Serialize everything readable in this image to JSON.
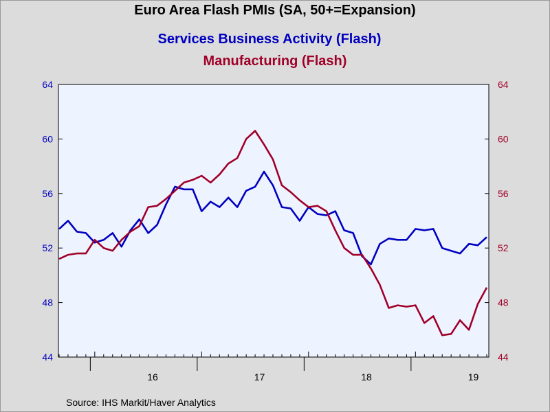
{
  "chart_data": {
    "type": "line",
    "title": "Euro Area Flash PMIs (SA, 50+=Expansion)",
    "source": "Source:  IHS Markit/Haver Analytics",
    "x_labels": [
      "16",
      "17",
      "18",
      "19"
    ],
    "y_left": {
      "range": [
        44,
        64
      ],
      "ticks": [
        "44",
        "48",
        "52",
        "56",
        "60",
        "64"
      ]
    },
    "y_right": {
      "range": [
        44,
        64
      ],
      "ticks": [
        "44",
        "48",
        "52",
        "56",
        "60",
        "64"
      ]
    },
    "x_start": "2015-09",
    "colors": {
      "services": "#0000c0",
      "manufacturing": "#a00028",
      "plot_bg": "#eef4ff"
    },
    "series": [
      {
        "name": "Services Business Activity (Flash)",
        "key": "services",
        "values": [
          53.4,
          54.0,
          53.2,
          53.1,
          52.4,
          52.6,
          53.1,
          52.1,
          53.3,
          54.1,
          53.1,
          53.7,
          55.2,
          56.5,
          56.3,
          56.3,
          54.7,
          55.4,
          55.0,
          55.7,
          55.0,
          56.2,
          56.5,
          57.6,
          56.6,
          55.0,
          54.9,
          54.0,
          55.0,
          54.5,
          54.4,
          54.7,
          53.3,
          53.1,
          51.4,
          50.8,
          52.3,
          52.7,
          52.6,
          52.6,
          53.4,
          53.3,
          53.4,
          52.0,
          51.8,
          51.6,
          52.3,
          52.2,
          52.8
        ]
      },
      {
        "name": "Manufacturing (Flash)",
        "key": "manufacturing",
        "values": [
          51.2,
          51.5,
          51.6,
          51.6,
          52.6,
          52.0,
          51.8,
          52.6,
          53.2,
          53.6,
          55.0,
          55.1,
          55.6,
          56.2,
          56.8,
          57.0,
          57.3,
          56.8,
          57.4,
          58.2,
          58.6,
          60.0,
          60.6,
          59.6,
          58.5,
          56.6,
          56.1,
          55.5,
          55.0,
          55.1,
          54.7,
          53.3,
          52.0,
          51.5,
          51.5,
          50.5,
          49.3,
          47.6,
          47.8,
          47.7,
          47.8,
          46.5,
          47.0,
          45.6,
          45.7,
          46.7,
          46.0,
          47.9,
          49.1
        ]
      }
    ]
  }
}
